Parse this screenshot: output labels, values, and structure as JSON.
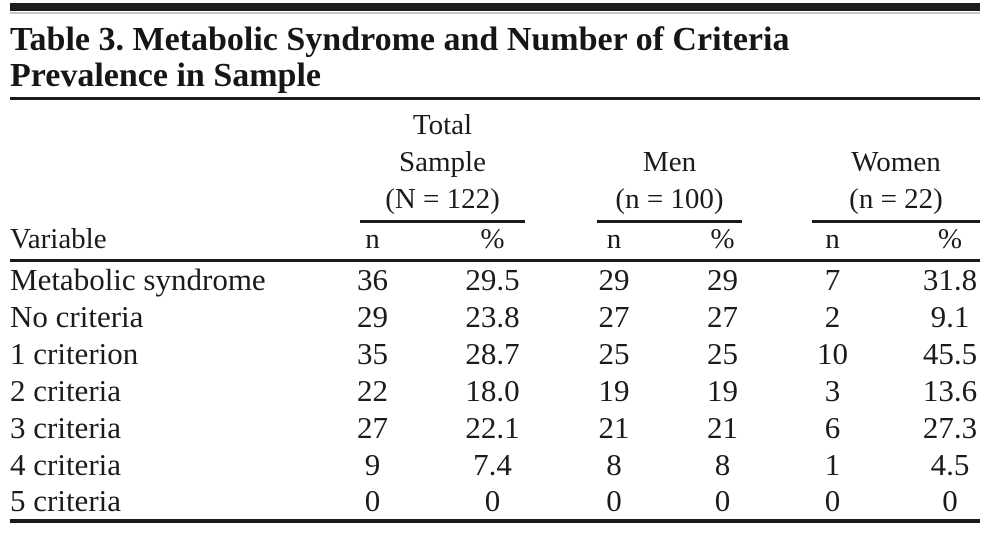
{
  "table": {
    "title": "Table 3. Metabolic Syndrome and Number of Criteria\nPrevalence in Sample",
    "groups": [
      {
        "label": "Total\nSample\n(N = 122)"
      },
      {
        "label": "Men\n(n = 100)"
      },
      {
        "label": "Women\n(n = 22)"
      }
    ],
    "variable_header": "Variable",
    "subheaders": {
      "n": "n",
      "pct": "%"
    },
    "rows": [
      {
        "label": "Metabolic syndrome",
        "total_n": "36",
        "total_pct": "29.5",
        "men_n": "29",
        "men_pct": "29",
        "women_n": "7",
        "women_pct": "31.8"
      },
      {
        "label": "No criteria",
        "total_n": "29",
        "total_pct": "23.8",
        "men_n": "27",
        "men_pct": "27",
        "women_n": "2",
        "women_pct": "9.1"
      },
      {
        "label": "1 criterion",
        "total_n": "35",
        "total_pct": "28.7",
        "men_n": "25",
        "men_pct": "25",
        "women_n": "10",
        "women_pct": "45.5"
      },
      {
        "label": "2 criteria",
        "total_n": "22",
        "total_pct": "18.0",
        "men_n": "19",
        "men_pct": "19",
        "women_n": "3",
        "women_pct": "13.6"
      },
      {
        "label": "3 criteria",
        "total_n": "27",
        "total_pct": "22.1",
        "men_n": "21",
        "men_pct": "21",
        "women_n": "6",
        "women_pct": "27.3"
      },
      {
        "label": "4 criteria",
        "total_n": "9",
        "total_pct": "7.4",
        "men_n": "8",
        "men_pct": "8",
        "women_n": "1",
        "women_pct": "4.5"
      },
      {
        "label": "5 criteria",
        "total_n": "0",
        "total_pct": "0",
        "men_n": "0",
        "men_pct": "0",
        "women_n": "0",
        "women_pct": "0"
      }
    ]
  },
  "colors": {
    "text": "#1b1b1b",
    "rule": "#1b1b1b",
    "background": "#ffffff"
  }
}
